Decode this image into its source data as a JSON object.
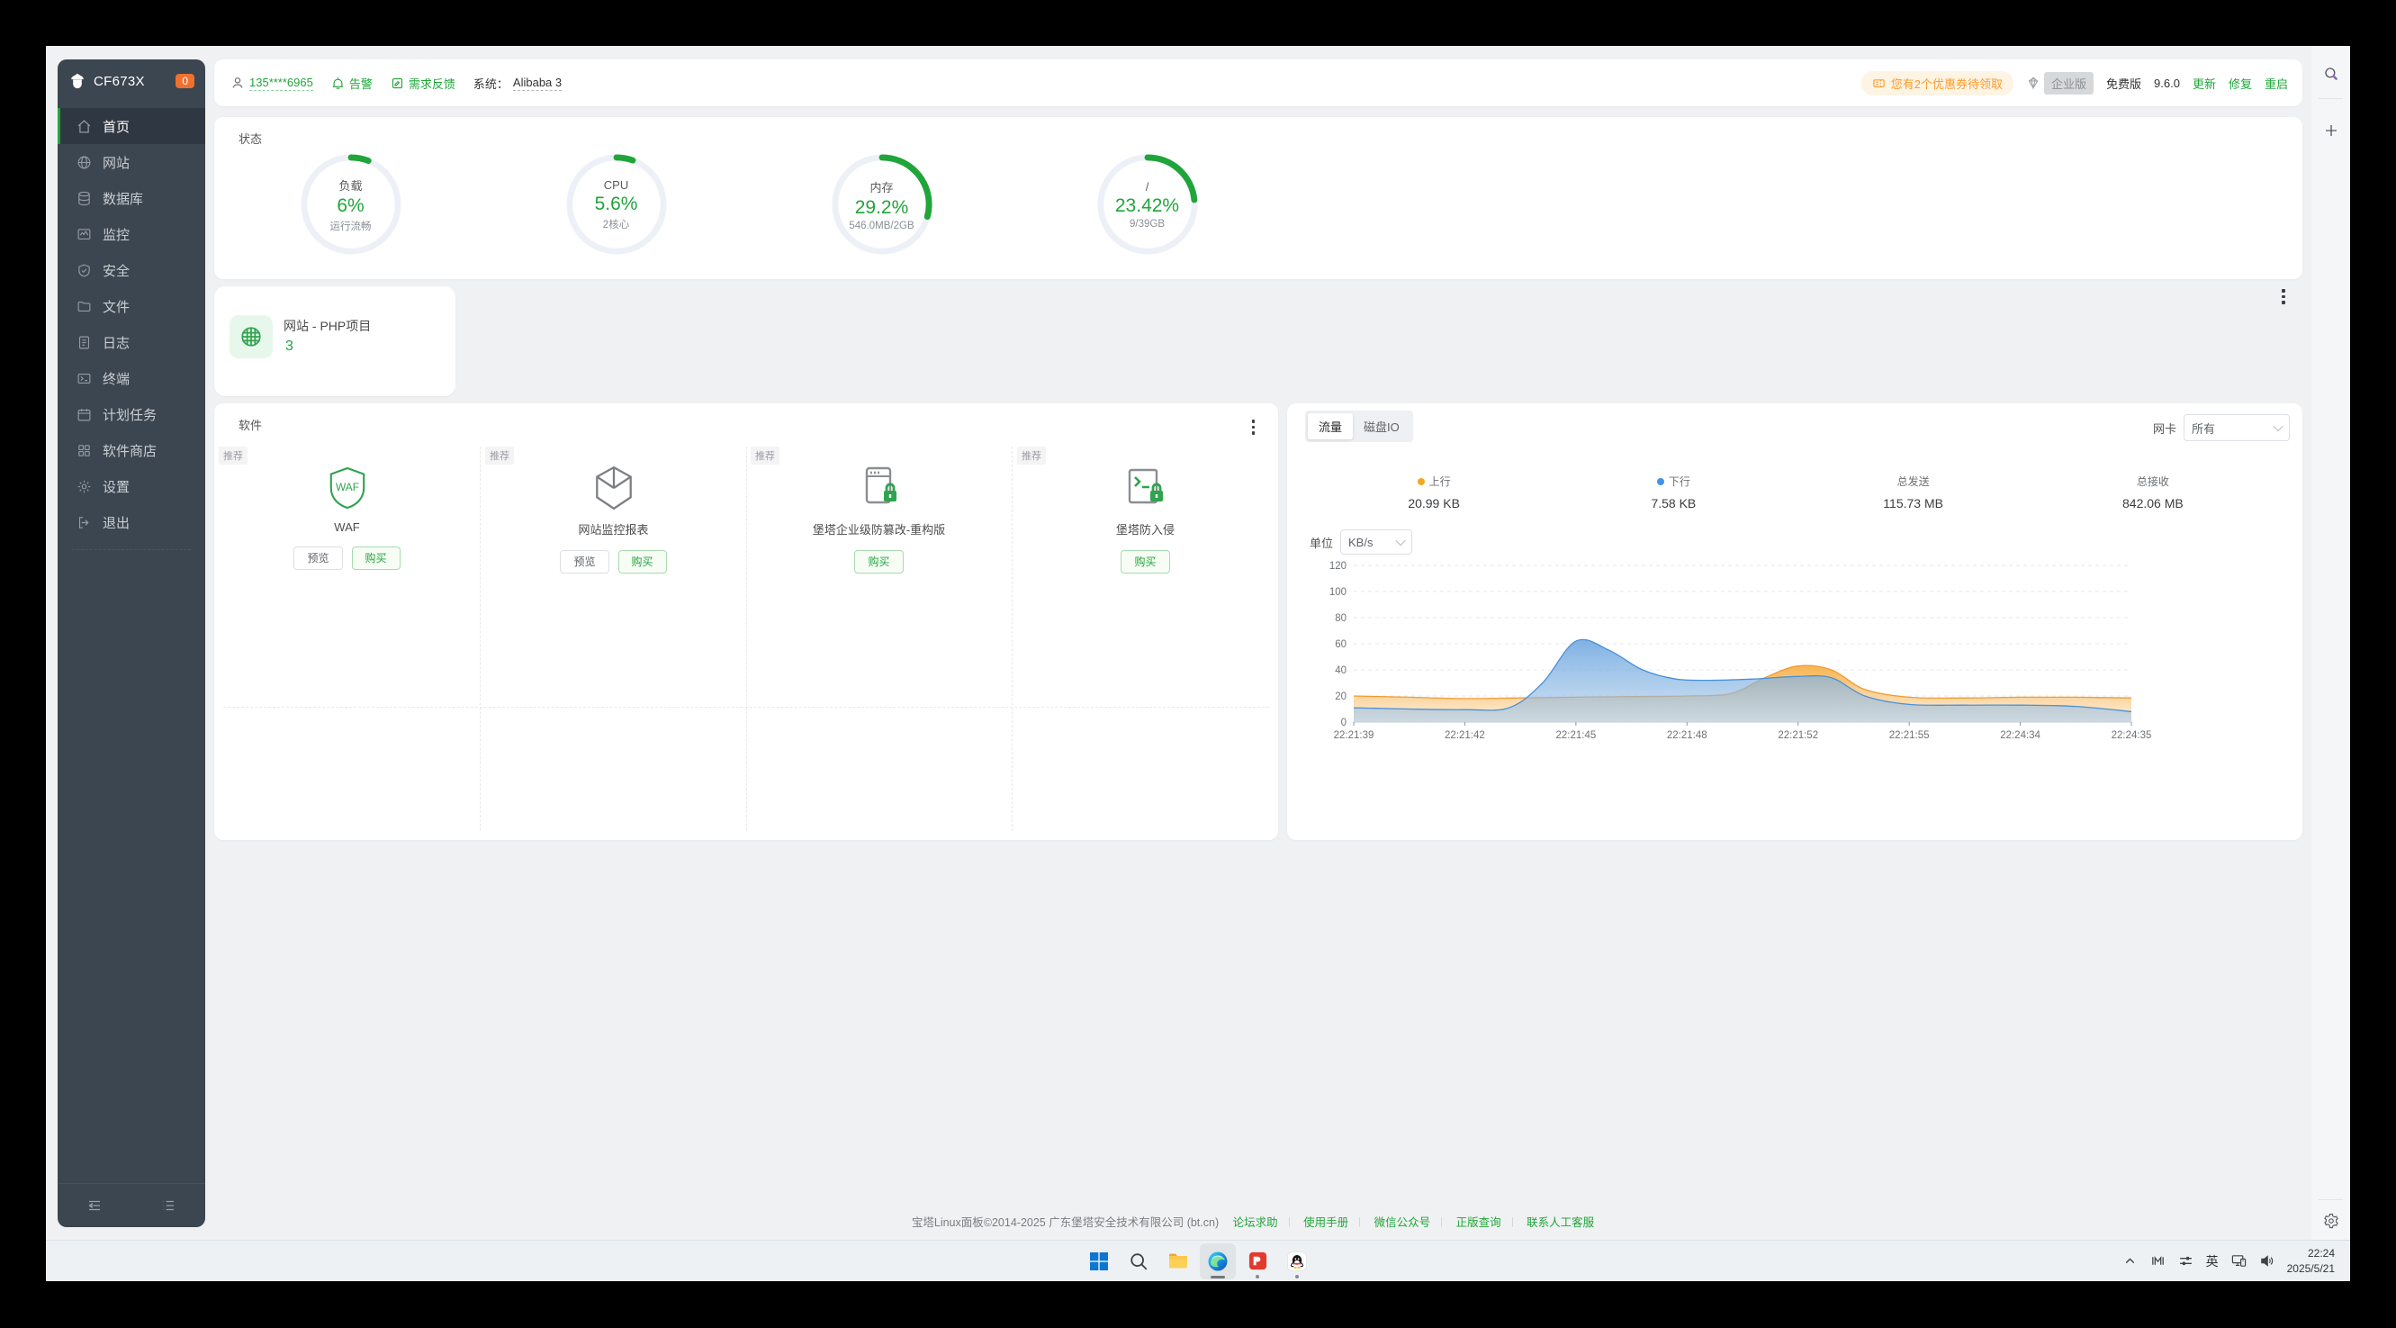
{
  "app": {
    "name": "CF673X",
    "badge": "0"
  },
  "sidebar": {
    "items": [
      "首页",
      "网站",
      "数据库",
      "监控",
      "安全",
      "文件",
      "日志",
      "终端",
      "计划任务",
      "软件商店",
      "设置",
      "退出"
    ],
    "active_index": 0
  },
  "topbar": {
    "user": "135****6965",
    "alarm": "告警",
    "feedback": "需求反馈",
    "system_label": "系统：",
    "system_value": "Alibaba 3",
    "coupon_text": "您有2个优惠券待领取",
    "enterprise_badge": "企业版",
    "edition": "免费版",
    "version": "9.6.0",
    "update": "更新",
    "repair": "修复",
    "restart": "重启"
  },
  "status": {
    "title": "状态",
    "gauges": [
      {
        "label": "负载",
        "value": "6%",
        "percent": 6,
        "sub": "运行流畅"
      },
      {
        "label": "CPU",
        "value": "5.6%",
        "percent": 5.6,
        "sub": "2核心"
      },
      {
        "label": "内存",
        "value": "29.2%",
        "percent": 29.2,
        "sub": "546.0MB/2GB"
      },
      {
        "label": "/",
        "value": "23.42%",
        "percent": 23.42,
        "sub": "9/39GB"
      }
    ]
  },
  "site_card": {
    "title": "网站 - PHP项目",
    "count": "3"
  },
  "software": {
    "title": "软件",
    "recommend_tag": "推荐",
    "items": [
      {
        "name": "WAF",
        "preview": "预览",
        "buy": "购买"
      },
      {
        "name": "网站监控报表",
        "preview": "预览",
        "buy": "购买"
      },
      {
        "name": "堡塔企业级防篡改-重构版",
        "buy": "购买"
      },
      {
        "name": "堡塔防入侵",
        "buy": "购买"
      }
    ]
  },
  "monitor": {
    "tab_traffic": "流量",
    "tab_diskio": "磁盘IO",
    "nic_label": "网卡",
    "nic_value": "所有",
    "unit_label": "单位",
    "unit_value": "KB/s",
    "stats": [
      {
        "label": "上行",
        "value": "20.99 KB",
        "dot": "#f5a623"
      },
      {
        "label": "下行",
        "value": "7.58 KB",
        "dot": "#3f94e8"
      },
      {
        "label": "总发送",
        "value": "115.73 MB"
      },
      {
        "label": "总接收",
        "value": "842.06 MB"
      }
    ]
  },
  "chart_data": {
    "type": "area",
    "title": "流量",
    "unit": "KB/s",
    "ylim": [
      0,
      120
    ],
    "y_ticks": [
      0,
      20,
      40,
      60,
      80,
      100,
      120
    ],
    "x_ticks": [
      "22:21:39",
      "22:21:42",
      "22:21:45",
      "22:21:48",
      "22:21:52",
      "22:21:55",
      "22:24:34",
      "22:24:35"
    ],
    "grid": true,
    "legend_position": "top-stats",
    "series": [
      {
        "name": "上行",
        "color": "#f39a32",
        "fill_top": "rgba(247,176,73,0.95)",
        "fill_bottom": "rgba(253,236,213,0.85)",
        "points": [
          [
            0,
            20
          ],
          [
            0.5,
            19
          ],
          [
            1,
            18
          ],
          [
            1.5,
            18.5
          ],
          [
            2,
            19
          ],
          [
            2.5,
            19.5
          ],
          [
            3,
            20
          ],
          [
            3.4,
            22
          ],
          [
            3.7,
            34
          ],
          [
            4,
            43
          ],
          [
            4.3,
            40
          ],
          [
            4.6,
            25
          ],
          [
            5,
            19
          ],
          [
            5.5,
            18.5
          ],
          [
            6,
            19
          ],
          [
            6.5,
            19
          ],
          [
            7,
            18.5
          ]
        ]
      },
      {
        "name": "下行",
        "color": "#4a90d9",
        "fill_top": "rgba(96,158,219,0.8)",
        "fill_bottom": "rgba(164,199,233,0.55)",
        "points": [
          [
            0,
            11
          ],
          [
            0.5,
            10
          ],
          [
            1,
            9.5
          ],
          [
            1.4,
            11
          ],
          [
            1.7,
            30
          ],
          [
            2,
            62
          ],
          [
            2.3,
            55
          ],
          [
            2.6,
            40
          ],
          [
            2.9,
            33
          ],
          [
            3.2,
            32
          ],
          [
            3.6,
            33
          ],
          [
            4,
            35
          ],
          [
            4.3,
            34
          ],
          [
            4.6,
            20
          ],
          [
            5,
            13.5
          ],
          [
            5.5,
            13
          ],
          [
            6,
            13
          ],
          [
            6.5,
            12
          ],
          [
            7,
            8
          ]
        ]
      }
    ]
  },
  "footer": {
    "copyright": "宝塔Linux面板©2014-2025 广东堡塔安全技术有限公司 (bt.cn)",
    "links": [
      "论坛求助",
      "使用手册",
      "微信公众号",
      "正版查询",
      "联系人工客服"
    ]
  },
  "taskbar": {
    "time": "22:24",
    "date": "2025/5/21",
    "ime": "英"
  },
  "colors": {
    "green": "#20a53a",
    "orange": "#fe9b2d",
    "sidebar": "#3c4650"
  }
}
